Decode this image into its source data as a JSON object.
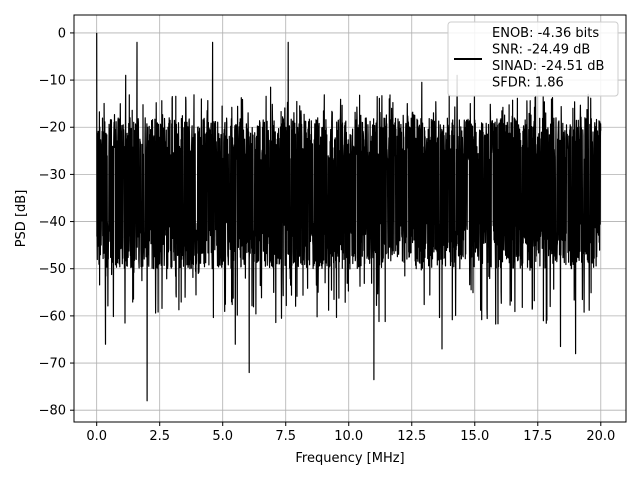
{
  "chart_data": {
    "type": "line",
    "xlabel": "Frequency [MHz]",
    "ylabel": "PSD [dB]",
    "xlim": [
      -0.9,
      21.0
    ],
    "ylim": [
      -82.5,
      3.8
    ],
    "xticks": [
      0.0,
      2.5,
      5.0,
      7.5,
      10.0,
      12.5,
      15.0,
      17.5,
      20.0
    ],
    "xtick_labels": [
      "0.0",
      "2.5",
      "5.0",
      "7.5",
      "10.0",
      "12.5",
      "15.0",
      "17.5",
      "20.0"
    ],
    "yticks": [
      0,
      -10,
      -20,
      -30,
      -40,
      -50,
      -60,
      -70,
      -80
    ],
    "ytick_labels": [
      "0",
      "−10",
      "−20",
      "−30",
      "−40",
      "−50",
      "−60",
      "−70",
      "−80"
    ],
    "grid": true,
    "legend_placement": "top-right",
    "series": [
      {
        "name": "ENOB: -4.36 bits\nSNR: -24.49 dB\nSINAD: -24.51 dB\nSFDR: 1.86",
        "legend_lines": [
          "ENOB: -4.36 bits",
          "SNR: -24.49 dB",
          "SINAD: -24.51 dB",
          "SFDR: 1.86"
        ],
        "color": "#000000",
        "x_range": [
          0.0,
          20.0
        ],
        "noise_floor_mean": -33,
        "noise_band": [
          -50,
          -18
        ],
        "spikes": [
          {
            "x": 0.0,
            "y": 0.0
          },
          {
            "x": 1.15,
            "y": -9.0
          },
          {
            "x": 1.6,
            "y": -2.0
          },
          {
            "x": 3.0,
            "y": -13.5
          },
          {
            "x": 4.6,
            "y": -2.0
          },
          {
            "x": 7.6,
            "y": -2.0
          },
          {
            "x": 6.9,
            "y": -11.5
          },
          {
            "x": 11.7,
            "y": -16.0
          },
          {
            "x": 12.9,
            "y": -10.5
          },
          {
            "x": 14.3,
            "y": -9.0
          }
        ],
        "dips": [
          {
            "x": 0.35,
            "y": -66.0
          },
          {
            "x": 2.0,
            "y": -78.0
          },
          {
            "x": 6.05,
            "y": -72.0
          },
          {
            "x": 11.0,
            "y": -73.5
          },
          {
            "x": 19.0,
            "y": -68.0
          },
          {
            "x": 13.7,
            "y": -67.0
          },
          {
            "x": 5.5,
            "y": -66.0
          },
          {
            "x": 18.4,
            "y": -66.5
          }
        ]
      }
    ]
  }
}
